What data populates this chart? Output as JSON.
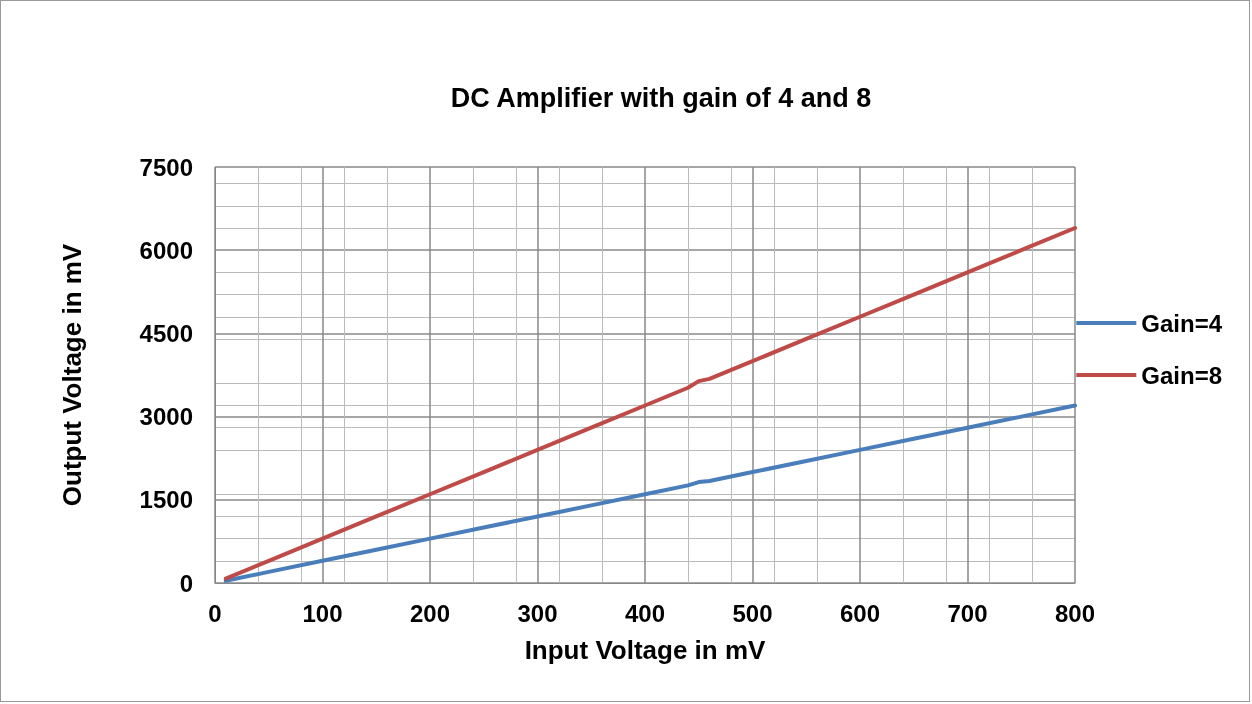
{
  "chart_data": {
    "type": "line",
    "title": "DC Amplifier with gain of 4 and 8",
    "xlabel": "Input Voltage in mV",
    "ylabel": "Output Voltage in mV",
    "x": [
      10,
      50,
      100,
      150,
      200,
      250,
      300,
      350,
      400,
      440,
      450,
      460,
      500,
      550,
      600,
      650,
      700,
      750,
      800
    ],
    "series": [
      {
        "name": "Gain=4",
        "color": "#4a7ebb",
        "values": [
          40,
          200,
          400,
          600,
          800,
          1000,
          1200,
          1400,
          1600,
          1760,
          1820,
          1840,
          2000,
          2200,
          2400,
          2600,
          2800,
          3000,
          3200
        ]
      },
      {
        "name": "Gain=8",
        "color": "#be4b48",
        "values": [
          80,
          400,
          800,
          1200,
          1600,
          2000,
          2400,
          2800,
          3200,
          3520,
          3640,
          3680,
          4000,
          4400,
          4800,
          5200,
          5600,
          6000,
          6400
        ]
      }
    ],
    "xlim": [
      0,
      800
    ],
    "xticks": [
      0,
      100,
      200,
      300,
      400,
      500,
      600,
      700,
      800
    ],
    "ylim": [
      0,
      7500
    ],
    "yticks": [
      0,
      1500,
      3000,
      4500,
      6000,
      7500
    ],
    "grid": true,
    "legend": "right",
    "marker": "none",
    "line_style": "solid"
  }
}
